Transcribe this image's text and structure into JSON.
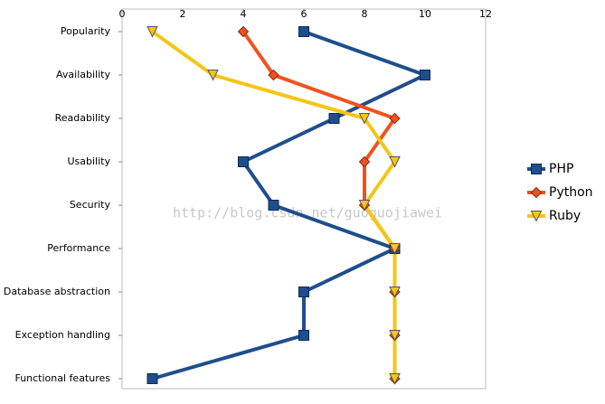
{
  "chart_data": {
    "type": "line",
    "orientation": "horizontal",
    "categories": [
      "Popularity",
      "Availability",
      "Readability",
      "Usability",
      "Security",
      "Performance",
      "Database abstraction",
      "Exception handling",
      "Functional features"
    ],
    "series": [
      {
        "name": "PHP",
        "color": "#1f4e8c",
        "marker": "square",
        "values": [
          6,
          10,
          7,
          4,
          5,
          9,
          6,
          6,
          1
        ]
      },
      {
        "name": "Python",
        "color": "#f0521e",
        "marker": "diamond",
        "values": [
          4,
          5,
          9,
          8,
          8,
          9,
          9,
          9,
          9
        ]
      },
      {
        "name": "Ruby",
        "color": "#f5c518",
        "marker": "triangle",
        "values": [
          1,
          3,
          8,
          9,
          8,
          9,
          9,
          9,
          9
        ]
      }
    ],
    "xlim": [
      0,
      12
    ],
    "xticks": [
      0,
      2,
      4,
      6,
      8,
      10,
      12
    ],
    "grid": false,
    "legend": "right",
    "watermark": "http://blog.csdn.net/guoguojiawei"
  }
}
